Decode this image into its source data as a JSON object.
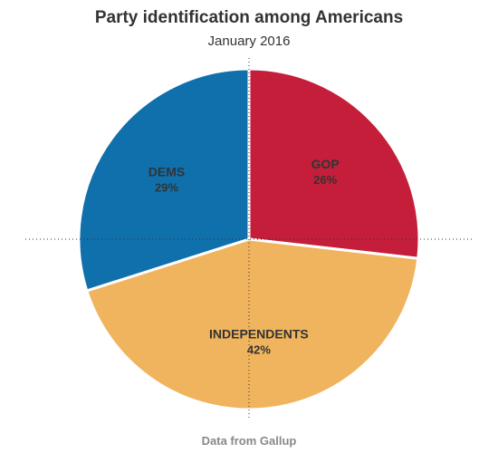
{
  "chart_data": {
    "type": "pie",
    "title": "Party identification among Americans",
    "subtitle": "January 2016",
    "source": "Data from Gallup",
    "slices": [
      {
        "label": "GOP",
        "value_label": "26%",
        "value": 26,
        "color": "#C41E3A"
      },
      {
        "label": "INDEPENDENTS",
        "value_label": "42%",
        "value": 42,
        "color": "#F0B35E"
      },
      {
        "label": "DEMS",
        "value_label": "29%",
        "value": 29,
        "color": "#0F70AC"
      }
    ]
  }
}
